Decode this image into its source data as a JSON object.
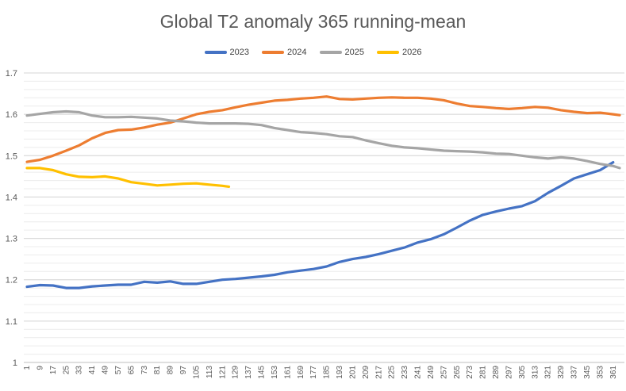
{
  "chart_data": {
    "type": "line",
    "title": "Global T2 anomaly 365 running-mean",
    "xlabel": "",
    "ylabel": "",
    "ylim": [
      1,
      1.7
    ],
    "yticks": [
      "1",
      "1.1",
      "1.2",
      "1.3",
      "1.4",
      "1.5",
      "1.6",
      "1.7"
    ],
    "xlim": [
      1,
      365
    ],
    "xticks": [
      "1",
      "9",
      "17",
      "25",
      "33",
      "41",
      "49",
      "57",
      "65",
      "73",
      "81",
      "89",
      "97",
      "105",
      "113",
      "121",
      "129",
      "137",
      "145",
      "153",
      "161",
      "169",
      "177",
      "185",
      "193",
      "201",
      "209",
      "217",
      "225",
      "233",
      "241",
      "249",
      "257",
      "265",
      "273",
      "281",
      "289",
      "297",
      "305",
      "313",
      "321",
      "329",
      "337",
      "345",
      "353",
      "361"
    ],
    "grid": true,
    "legend_position": "top",
    "series": [
      {
        "name": "2023",
        "color": "#4472C4",
        "points": [
          [
            1,
            1.183
          ],
          [
            9,
            1.187
          ],
          [
            17,
            1.186
          ],
          [
            25,
            1.18
          ],
          [
            33,
            1.18
          ],
          [
            41,
            1.184
          ],
          [
            49,
            1.186
          ],
          [
            57,
            1.188
          ],
          [
            65,
            1.188
          ],
          [
            73,
            1.195
          ],
          [
            81,
            1.193
          ],
          [
            89,
            1.196
          ],
          [
            97,
            1.19
          ],
          [
            105,
            1.19
          ],
          [
            113,
            1.195
          ],
          [
            121,
            1.2
          ],
          [
            129,
            1.202
          ],
          [
            137,
            1.205
          ],
          [
            145,
            1.208
          ],
          [
            153,
            1.212
          ],
          [
            161,
            1.218
          ],
          [
            169,
            1.222
          ],
          [
            177,
            1.226
          ],
          [
            185,
            1.232
          ],
          [
            193,
            1.243
          ],
          [
            201,
            1.25
          ],
          [
            209,
            1.255
          ],
          [
            217,
            1.262
          ],
          [
            225,
            1.27
          ],
          [
            233,
            1.278
          ],
          [
            241,
            1.29
          ],
          [
            249,
            1.298
          ],
          [
            257,
            1.31
          ],
          [
            265,
            1.326
          ],
          [
            273,
            1.343
          ],
          [
            281,
            1.357
          ],
          [
            289,
            1.365
          ],
          [
            297,
            1.372
          ],
          [
            305,
            1.378
          ],
          [
            313,
            1.39
          ],
          [
            321,
            1.41
          ],
          [
            329,
            1.427
          ],
          [
            337,
            1.445
          ],
          [
            345,
            1.455
          ],
          [
            353,
            1.465
          ],
          [
            361,
            1.484
          ]
        ]
      },
      {
        "name": "2024",
        "color": "#ED7D31",
        "points": [
          [
            1,
            1.485
          ],
          [
            9,
            1.49
          ],
          [
            17,
            1.5
          ],
          [
            25,
            1.512
          ],
          [
            33,
            1.525
          ],
          [
            41,
            1.542
          ],
          [
            49,
            1.555
          ],
          [
            57,
            1.562
          ],
          [
            65,
            1.563
          ],
          [
            73,
            1.568
          ],
          [
            81,
            1.575
          ],
          [
            89,
            1.58
          ],
          [
            97,
            1.59
          ],
          [
            105,
            1.6
          ],
          [
            113,
            1.606
          ],
          [
            121,
            1.61
          ],
          [
            129,
            1.617
          ],
          [
            137,
            1.623
          ],
          [
            145,
            1.628
          ],
          [
            153,
            1.633
          ],
          [
            161,
            1.635
          ],
          [
            169,
            1.638
          ],
          [
            177,
            1.64
          ],
          [
            185,
            1.643
          ],
          [
            193,
            1.637
          ],
          [
            201,
            1.636
          ],
          [
            209,
            1.638
          ],
          [
            217,
            1.64
          ],
          [
            225,
            1.641
          ],
          [
            233,
            1.64
          ],
          [
            241,
            1.64
          ],
          [
            249,
            1.638
          ],
          [
            257,
            1.634
          ],
          [
            265,
            1.626
          ],
          [
            273,
            1.62
          ],
          [
            281,
            1.618
          ],
          [
            289,
            1.615
          ],
          [
            297,
            1.613
          ],
          [
            305,
            1.615
          ],
          [
            313,
            1.618
          ],
          [
            321,
            1.616
          ],
          [
            329,
            1.61
          ],
          [
            337,
            1.606
          ],
          [
            345,
            1.603
          ],
          [
            353,
            1.604
          ],
          [
            361,
            1.6
          ],
          [
            365,
            1.598
          ]
        ]
      },
      {
        "name": "2025",
        "color": "#A5A5A5",
        "points": [
          [
            1,
            1.597
          ],
          [
            9,
            1.601
          ],
          [
            17,
            1.605
          ],
          [
            25,
            1.607
          ],
          [
            33,
            1.605
          ],
          [
            41,
            1.597
          ],
          [
            49,
            1.593
          ],
          [
            57,
            1.593
          ],
          [
            65,
            1.594
          ],
          [
            73,
            1.592
          ],
          [
            81,
            1.59
          ],
          [
            89,
            1.585
          ],
          [
            97,
            1.583
          ],
          [
            105,
            1.58
          ],
          [
            113,
            1.578
          ],
          [
            121,
            1.578
          ],
          [
            129,
            1.578
          ],
          [
            137,
            1.577
          ],
          [
            145,
            1.574
          ],
          [
            153,
            1.567
          ],
          [
            161,
            1.562
          ],
          [
            169,
            1.557
          ],
          [
            177,
            1.555
          ],
          [
            185,
            1.552
          ],
          [
            193,
            1.547
          ],
          [
            201,
            1.545
          ],
          [
            209,
            1.537
          ],
          [
            217,
            1.53
          ],
          [
            225,
            1.524
          ],
          [
            233,
            1.52
          ],
          [
            241,
            1.518
          ],
          [
            249,
            1.515
          ],
          [
            257,
            1.512
          ],
          [
            265,
            1.511
          ],
          [
            273,
            1.51
          ],
          [
            281,
            1.508
          ],
          [
            289,
            1.505
          ],
          [
            297,
            1.504
          ],
          [
            305,
            1.5
          ],
          [
            313,
            1.496
          ],
          [
            321,
            1.493
          ],
          [
            329,
            1.496
          ],
          [
            337,
            1.493
          ],
          [
            345,
            1.487
          ],
          [
            353,
            1.48
          ],
          [
            361,
            1.475
          ],
          [
            365,
            1.47
          ]
        ]
      },
      {
        "name": "2026",
        "color": "#FFC000",
        "points": [
          [
            1,
            1.47
          ],
          [
            9,
            1.47
          ],
          [
            17,
            1.465
          ],
          [
            25,
            1.455
          ],
          [
            33,
            1.449
          ],
          [
            41,
            1.448
          ],
          [
            49,
            1.45
          ],
          [
            57,
            1.445
          ],
          [
            65,
            1.436
          ],
          [
            73,
            1.432
          ],
          [
            81,
            1.428
          ],
          [
            89,
            1.43
          ],
          [
            97,
            1.432
          ],
          [
            105,
            1.433
          ],
          [
            113,
            1.43
          ],
          [
            121,
            1.427
          ],
          [
            125,
            1.425
          ]
        ]
      }
    ]
  }
}
